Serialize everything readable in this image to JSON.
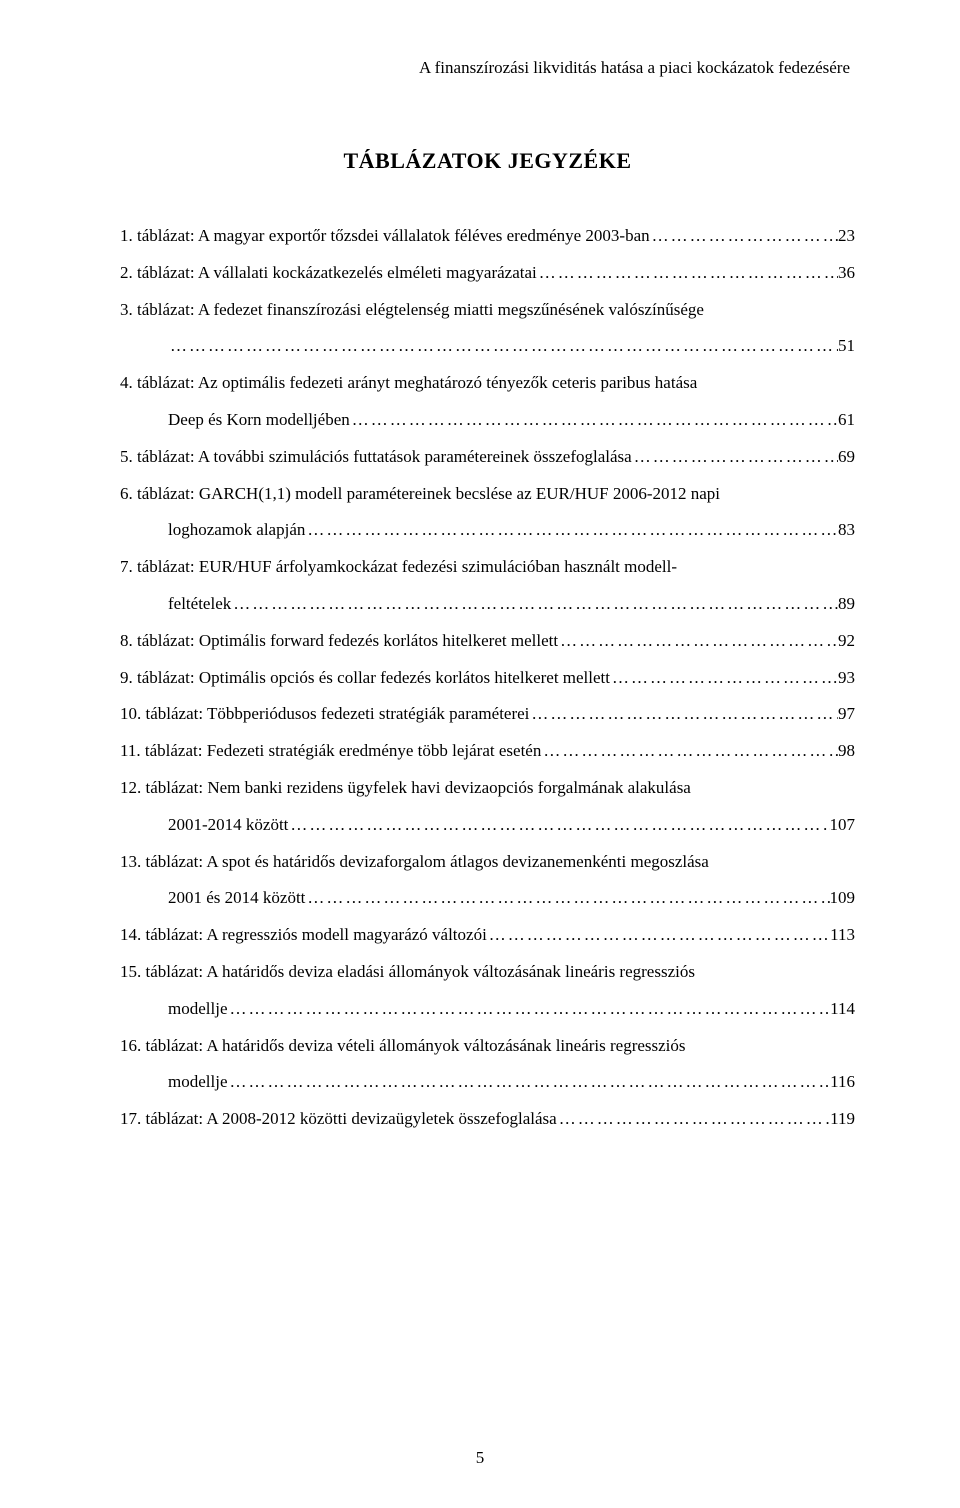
{
  "header": "A finanszírozási likviditás hatása a piaci kockázatok fedezésére",
  "title": "TÁBLÁZATOK JEGYZÉKE",
  "entries": [
    {
      "number": "1.",
      "text": "táblázat: A magyar exportőr tőzsdei vállalatok féléves eredménye 2003-ban",
      "page": "23",
      "multiline": false
    },
    {
      "number": "2.",
      "text": "táblázat: A vállalati kockázatkezelés elméleti magyarázatai",
      "page": "36",
      "multiline": false
    },
    {
      "number": "3.",
      "text": "táblázat: A fedezet finanszírozási elégtelenség miatti megszűnésének valószínűsége",
      "continuation": "",
      "page": "51",
      "multiline": true
    },
    {
      "number": "4.",
      "text": "táblázat: Az optimális fedezeti arányt meghatározó tényezők ceteris paribus hatása",
      "continuation": "Deep és Korn modelljében",
      "page": "61",
      "multiline": true
    },
    {
      "number": "5.",
      "text": "táblázat: A további szimulációs futtatások paramétereinek összefoglalása",
      "page": "69",
      "multiline": false
    },
    {
      "number": "6.",
      "text": "táblázat: GARCH(1,1) modell paramétereinek becslése az EUR/HUF 2006-2012 napi",
      "continuation": "loghozamok alapján",
      "page": "83",
      "multiline": true
    },
    {
      "number": "7.",
      "text": "táblázat: EUR/HUF árfolyamkockázat fedezési szimulációban használt  modell-",
      "continuation": "feltételek",
      "page": "89",
      "multiline": true
    },
    {
      "number": "8.",
      "text": "táblázat: Optimális forward fedezés korlátos hitelkeret mellett",
      "page": "92",
      "multiline": false
    },
    {
      "number": "9.",
      "text": "táblázat: Optimális opciós és collar fedezés korlátos hitelkeret mellett",
      "page": "93",
      "multiline": false
    },
    {
      "number": "10.",
      "text": "táblázat: Többperiódusos fedezeti stratégiák paraméterei",
      "page": "97",
      "multiline": false
    },
    {
      "number": "11.",
      "text": "táblázat: Fedezeti stratégiák eredménye több lejárat esetén",
      "page": "98",
      "multiline": false
    },
    {
      "number": "12.",
      "text": "táblázat: Nem banki rezidens ügyfelek havi devizaopciós forgalmának alakulása",
      "continuation": "2001-2014 között",
      "page": "107",
      "multiline": true
    },
    {
      "number": "13.",
      "text": "táblázat: A spot és határidős devizaforgalom átlagos devizanemenkénti megoszlása",
      "continuation": "2001 és 2014 között",
      "page": "109",
      "multiline": true
    },
    {
      "number": "14.",
      "text": "táblázat: A regressziós modell magyarázó változói",
      "page": "113",
      "multiline": false
    },
    {
      "number": "15.",
      "text": "táblázat: A határidős deviza eladási állományok változásának lineáris regressziós",
      "continuation": "modellje",
      "page": "114",
      "multiline": true
    },
    {
      "number": "16.",
      "text": "táblázat: A határidős deviza vételi állományok változásának lineáris regressziós",
      "continuation": "modellje",
      "page": "116",
      "multiline": true
    },
    {
      "number": "17.",
      "text": "táblázat: A 2008-2012 közötti devizaügyletek összefoglalása",
      "page": "119",
      "multiline": false
    }
  ],
  "page_number": "5"
}
